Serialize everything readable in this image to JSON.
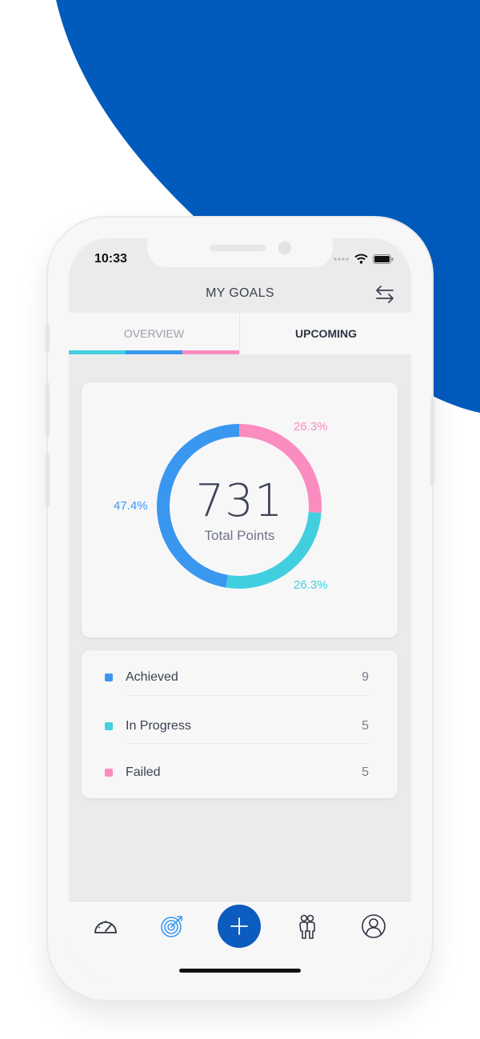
{
  "status_bar": {
    "time": "10:33"
  },
  "header": {
    "title": "MY GOALS",
    "swap_icon": "swap-arrows-icon"
  },
  "tabs": [
    {
      "label": "OVERVIEW",
      "selected": true
    },
    {
      "label": "UPCOMING",
      "selected": false
    }
  ],
  "colors": {
    "brand_blue": "#0b5cbe",
    "achieved": "#3a97f0",
    "in_progress": "#41cfe0",
    "failed": "#fb8cbf"
  },
  "chart_data": {
    "type": "pie",
    "donut": true,
    "center_value": "731",
    "center_label": "Total Points",
    "slices": [
      {
        "label": "Achieved",
        "value": 47.4,
        "display": "47.4%",
        "color": "#3a97f0"
      },
      {
        "label": "In Progress",
        "value": 26.3,
        "display": "26.3%",
        "color": "#41cfe0"
      },
      {
        "label": "Failed",
        "value": 26.3,
        "display": "26.3%",
        "color": "#fb8cbf"
      }
    ]
  },
  "legend": [
    {
      "label": "Achieved",
      "count": "9",
      "color": "#3a97f0"
    },
    {
      "label": "In Progress",
      "count": "5",
      "color": "#41cfe0"
    },
    {
      "label": "Failed",
      "count": "5",
      "color": "#fb8cbf"
    }
  ],
  "bottom_nav": {
    "items": [
      "speedometer-icon",
      "target-icon",
      "add-icon",
      "people-icon",
      "profile-icon"
    ],
    "active": "target-icon"
  }
}
